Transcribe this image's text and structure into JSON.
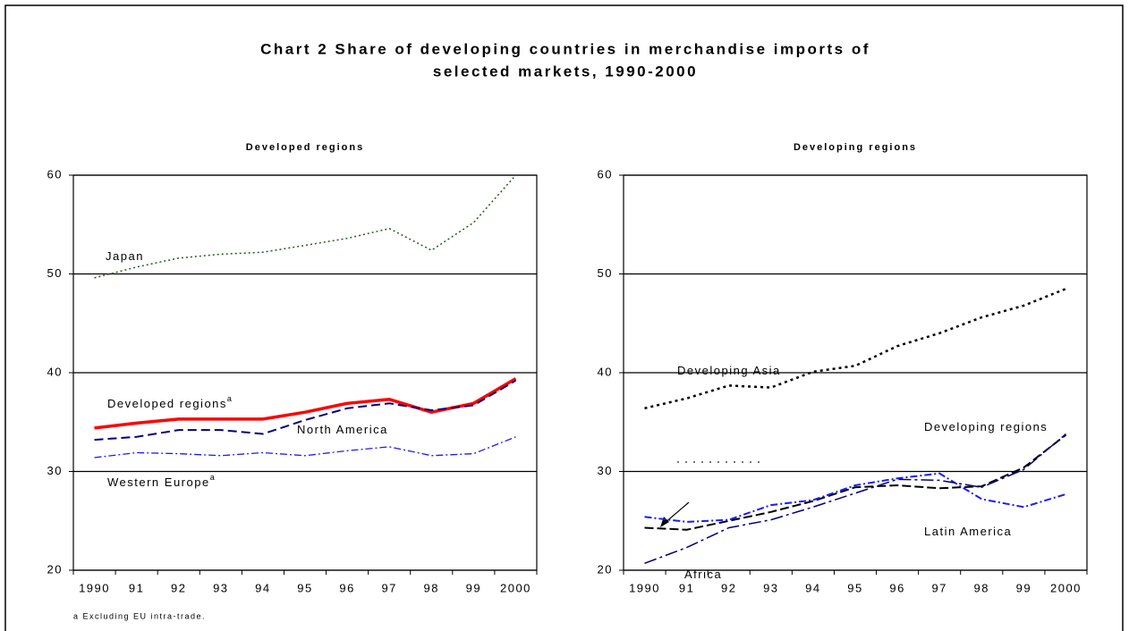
{
  "title": [
    "Chart 2  Share of developing countries in merchandise imports of",
    "selected markets, 1990-2000"
  ],
  "footnote": "a Excluding EU intra-trade.",
  "chart_data": [
    {
      "type": "line",
      "subtitle": "Developed regions",
      "categories": [
        "1990",
        "91",
        "92",
        "93",
        "94",
        "95",
        "96",
        "97",
        "98",
        "99",
        "2000"
      ],
      "ylim": [
        20,
        60
      ],
      "yticks": [
        20,
        30,
        40,
        50,
        60
      ],
      "grid": true,
      "series": [
        {
          "name": "Japan",
          "color": "#1f5f1f",
          "values": [
            49.6,
            50.7,
            51.6,
            52.0,
            52.2,
            52.9,
            53.6,
            54.6,
            52.4,
            55.2,
            60.0
          ]
        },
        {
          "name": "Developed regions",
          "superscript": "a",
          "color": "#ff0000",
          "values": [
            34.4,
            34.9,
            35.3,
            35.3,
            35.3,
            36.0,
            36.9,
            37.3,
            36.0,
            36.9,
            39.4
          ]
        },
        {
          "name": "North America",
          "color": "#000080",
          "values": [
            33.2,
            33.5,
            34.2,
            34.2,
            33.8,
            35.2,
            36.4,
            36.9,
            36.2,
            36.7,
            39.2
          ]
        },
        {
          "name": "Western Europe",
          "superscript": "a",
          "color": "#1a1aff",
          "values": [
            31.4,
            31.9,
            31.8,
            31.6,
            31.9,
            31.6,
            32.1,
            32.5,
            31.6,
            31.8,
            33.5
          ]
        }
      ]
    },
    {
      "type": "line",
      "subtitle": "Developing regions",
      "categories": [
        "1990",
        "91",
        "92",
        "93",
        "94",
        "95",
        "96",
        "97",
        "98",
        "99",
        "2000"
      ],
      "ylim": [
        20,
        60
      ],
      "yticks": [
        20,
        30,
        40,
        50,
        60
      ],
      "grid": true,
      "series": [
        {
          "name": "Developing Asia",
          "color": "#000000",
          "values": [
            36.4,
            37.4,
            38.7,
            38.5,
            40.1,
            40.7,
            42.7,
            44.0,
            45.6,
            46.8,
            48.5
          ]
        },
        {
          "name": "Developing regions",
          "color": "#000000",
          "values": [
            24.3,
            24.1,
            25.0,
            25.9,
            27.0,
            28.4,
            28.6,
            28.3,
            28.5,
            30.4,
            33.7
          ]
        },
        {
          "name": "Latin America",
          "color": "#1a1aff",
          "values": [
            25.4,
            24.9,
            25.1,
            26.6,
            27.1,
            28.6,
            29.3,
            29.8,
            27.2,
            26.4,
            27.7
          ]
        },
        {
          "name": "Africa",
          "color": "#000080",
          "values": [
            20.7,
            22.3,
            24.3,
            25.1,
            26.4,
            27.8,
            29.2,
            29.1,
            28.4,
            30.2,
            33.8
          ]
        }
      ]
    }
  ]
}
